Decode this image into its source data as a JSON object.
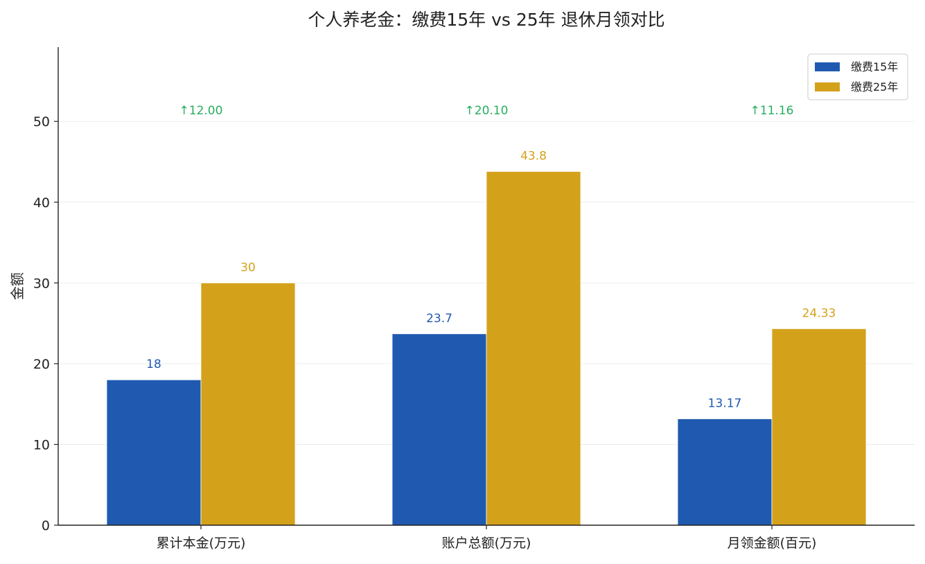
{
  "chart_data": {
    "type": "bar",
    "title": "个人养老金：缴费15年 vs 25年 退休月领对比",
    "xlabel": "",
    "ylabel": "金额",
    "categories": [
      "累计本金(万元)",
      "账户总额(万元)",
      "月领金额(百元)"
    ],
    "series": [
      {
        "name": "缴费15年",
        "values": [
          18,
          23.7,
          13.17
        ],
        "labels": [
          "18",
          "23.7",
          "13.17"
        ],
        "color": "#1f5ab0",
        "label_color": "#1f5ab0"
      },
      {
        "name": "缴费25年",
        "values": [
          30,
          43.8,
          24.33
        ],
        "labels": [
          "30",
          "43.8",
          "24.33"
        ],
        "color": "#d4a11a",
        "label_color": "#d4a11a"
      }
    ],
    "diff_labels": [
      "↑12.00",
      "↑20.10",
      "↑11.16"
    ],
    "diff_color": "#27ae60",
    "ylim": [
      0,
      59.2
    ],
    "yticks": [
      0,
      10,
      20,
      30,
      40,
      50
    ],
    "grid": true,
    "legend_position": "top-right"
  }
}
